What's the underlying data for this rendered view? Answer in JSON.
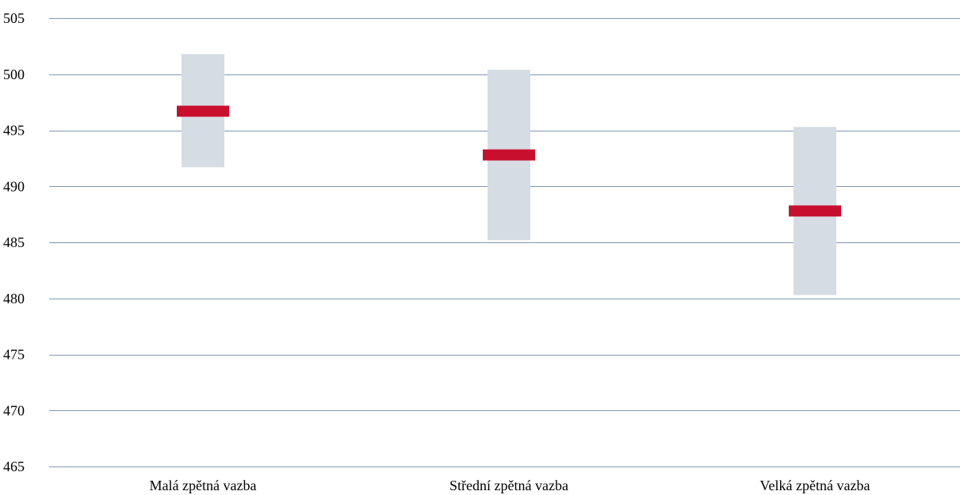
{
  "chart_data": {
    "type": "range-bar",
    "title": "",
    "xlabel": "",
    "ylabel": "",
    "ylim": [
      465,
      505
    ],
    "yticks": [
      465,
      470,
      475,
      480,
      485,
      490,
      495,
      500,
      505
    ],
    "categories": [
      "Malá zpětná vazba",
      "Střední zpětná vazba",
      "Velká zpětná vazba"
    ],
    "ranges": [
      {
        "low": 491.7,
        "high": 501.8
      },
      {
        "low": 485.2,
        "high": 500.4
      },
      {
        "low": 480.3,
        "high": 495.3
      }
    ],
    "means": [
      496.7,
      492.8,
      487.8
    ],
    "grid": true,
    "legend": "none",
    "colors": {
      "range": "#d6dce4",
      "mean": "#c8102e",
      "grid": "#8496b0"
    }
  }
}
